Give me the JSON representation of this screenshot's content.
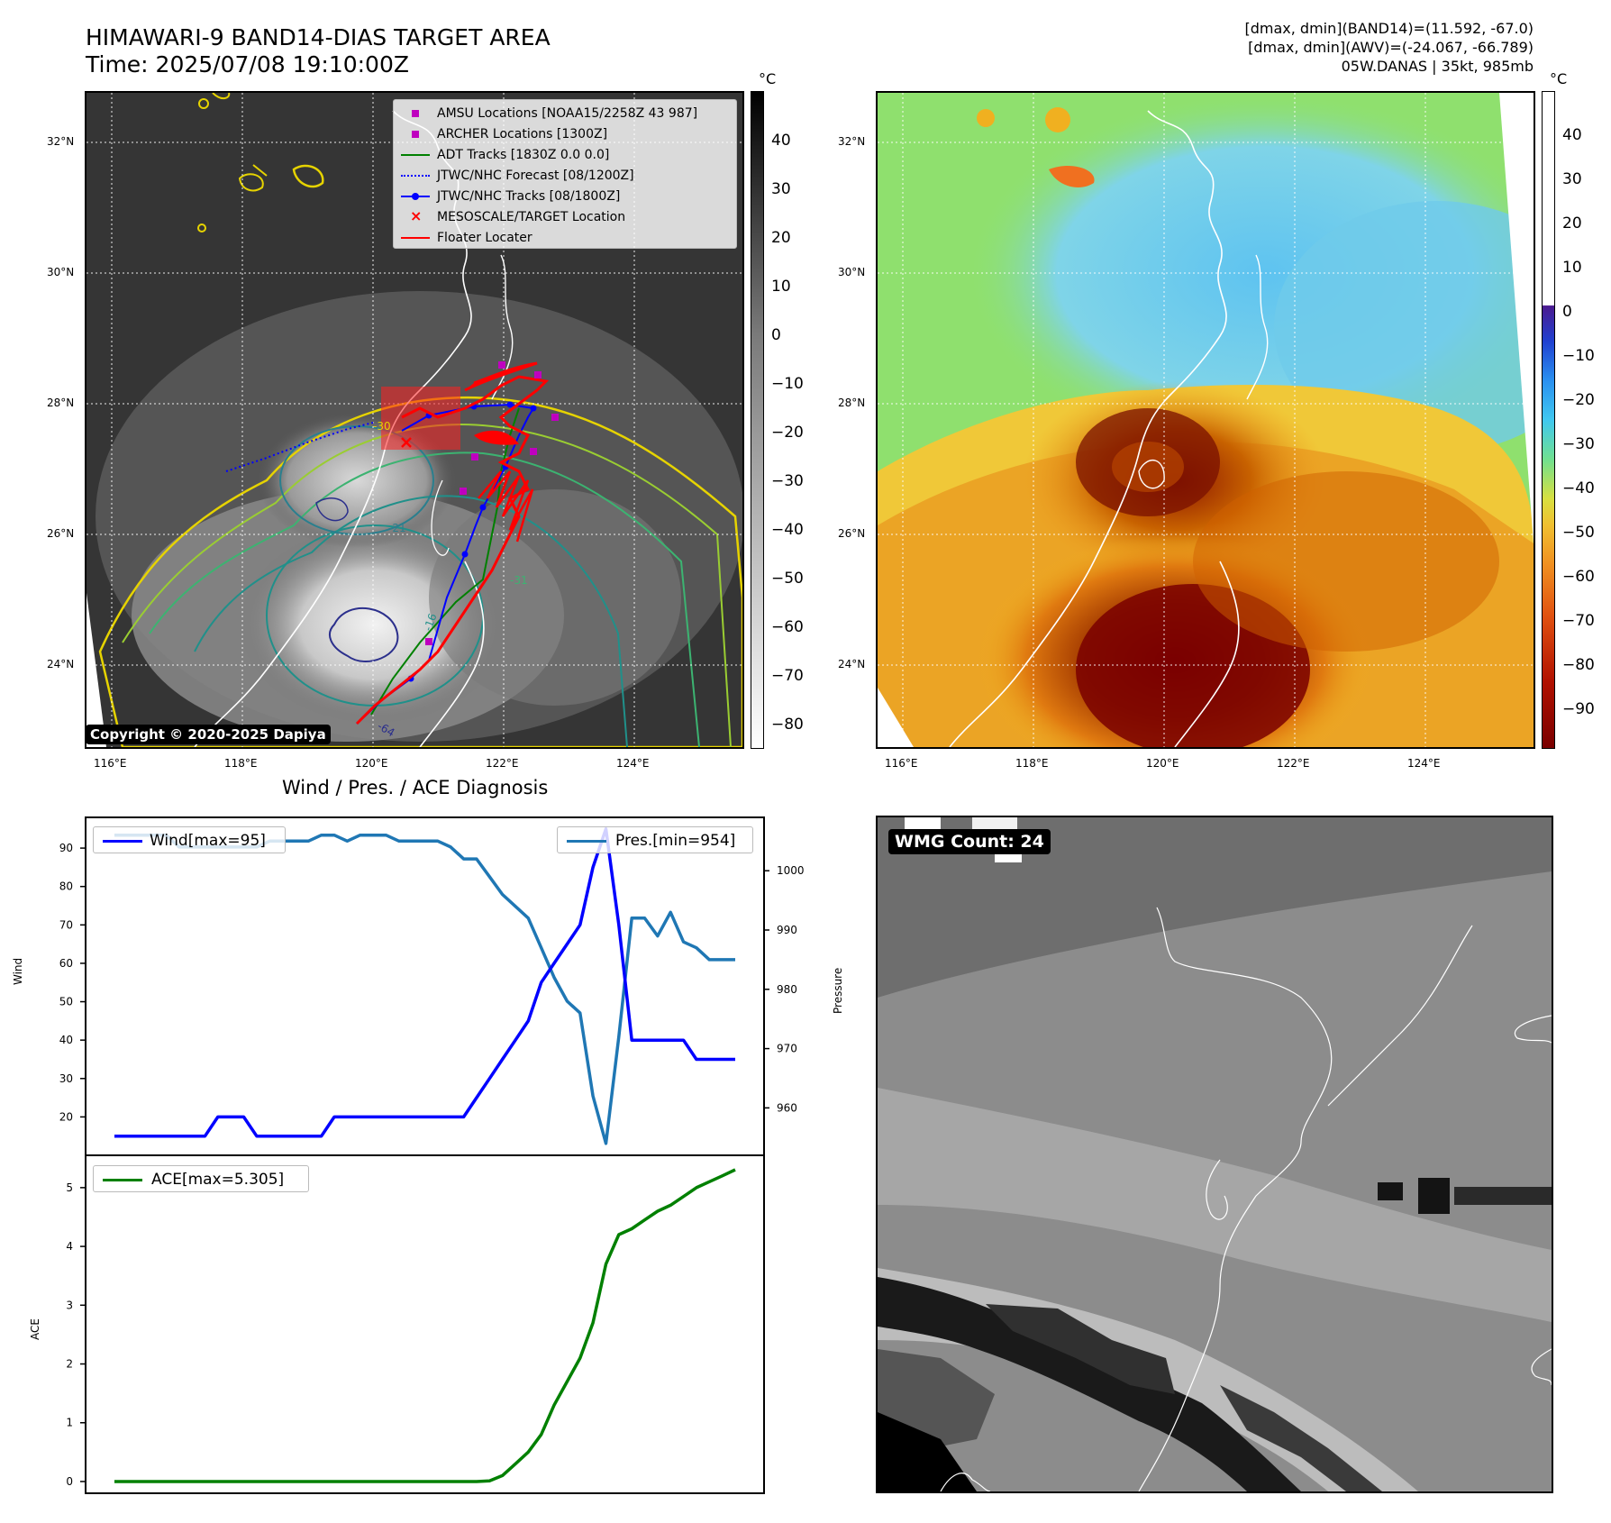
{
  "header": {
    "title_line1": "HIMAWARI-9 BAND14-DIAS TARGET AREA",
    "title_line2": "Time: 2025/07/08 19:10:00Z",
    "info_line1": "[dmax, dmin](BAND14)=(11.592, -67.0)",
    "info_line2": "[dmax, dmin](AWV)=(-24.067, -66.789)",
    "info_line3": "05W.DANAS | 35kt, 985mb"
  },
  "map": {
    "lat_labels": [
      "32°N",
      "30°N",
      "28°N",
      "26°N",
      "24°N"
    ],
    "lon_labels": [
      "116°E",
      "118°E",
      "120°E",
      "122°E",
      "124°E"
    ],
    "copyright": "Copyright © 2020-2025 Dapiya",
    "contour_labels": [
      "-30",
      "-16",
      "-64",
      "-31",
      "-21"
    ]
  },
  "colorbar_left": {
    "unit": "°C",
    "ticks": [
      "40",
      "30",
      "20",
      "10",
      "0",
      "−10",
      "−20",
      "−30",
      "−40",
      "−50",
      "−60",
      "−70",
      "−80"
    ]
  },
  "colorbar_right": {
    "unit": "°C",
    "ticks": [
      "40",
      "30",
      "20",
      "10",
      "0",
      "−10",
      "−20",
      "−30",
      "−40",
      "−50",
      "−60",
      "−70",
      "−80",
      "−90"
    ]
  },
  "legend": {
    "items": [
      {
        "label": "AMSU Locations [NOAA15/2258Z 43 987]",
        "symbol": "square",
        "color": "#bf00bf"
      },
      {
        "label": "ARCHER Locations [1300Z]",
        "symbol": "square",
        "color": "#bf00bf"
      },
      {
        "label": "ADT Tracks [1830Z 0.0 0.0]",
        "symbol": "line",
        "color": "#008000"
      },
      {
        "label": "JTWC/NHC Forecast [08/1200Z]",
        "symbol": "dotted",
        "color": "#0000ff"
      },
      {
        "label": "JTWC/NHC Tracks [08/1800Z]",
        "symbol": "line-dot",
        "color": "#0000ff"
      },
      {
        "label": "MESOSCALE/TARGET Location",
        "symbol": "x",
        "color": "#ff0000"
      },
      {
        "label": "Floater Locater",
        "symbol": "line",
        "color": "#ff0000"
      }
    ]
  },
  "wmg": {
    "badge": "WMG Count: 24"
  },
  "chart_data": [
    {
      "type": "line",
      "title": "Wind / Pres. / ACE Diagnosis",
      "ylabel": "Wind",
      "ylabel2": "Pressure",
      "ylim": [
        10,
        98
      ],
      "ylim2": [
        952,
        1009
      ],
      "yticks": [
        20,
        30,
        40,
        50,
        60,
        70,
        80,
        90
      ],
      "yticks2": [
        960,
        970,
        980,
        990,
        1000
      ],
      "x": [
        0,
        1,
        2,
        3,
        4,
        5,
        6,
        7,
        8,
        9,
        10,
        11,
        12,
        13,
        14,
        15,
        16,
        17,
        18,
        19,
        20,
        21,
        22,
        23,
        24,
        25,
        26,
        27,
        28,
        29,
        30,
        31,
        32,
        33,
        34,
        35,
        36,
        37,
        38,
        39,
        40,
        41,
        42,
        43,
        44,
        45,
        46,
        47,
        48
      ],
      "series": [
        {
          "name": "Wind[max=95]",
          "color": "#0000ff",
          "axis": "left",
          "values": [
            15,
            15,
            15,
            15,
            15,
            15,
            15,
            15,
            20,
            20,
            20,
            15,
            15,
            15,
            15,
            15,
            15,
            20,
            20,
            20,
            20,
            20,
            20,
            20,
            20,
            20,
            20,
            20,
            25,
            30,
            35,
            40,
            45,
            55,
            60,
            65,
            70,
            85,
            95,
            70,
            40,
            40,
            40,
            40,
            40,
            35,
            35,
            35,
            35
          ]
        },
        {
          "name": "Pres.[min=954]",
          "color": "#1f77b4",
          "axis": "right",
          "values": [
            1006,
            1006,
            1006,
            1006,
            1006,
            1004,
            1004,
            1004,
            1004,
            1004,
            1004,
            1004,
            1005,
            1005,
            1005,
            1005,
            1006,
            1006,
            1005,
            1006,
            1006,
            1006,
            1005,
            1005,
            1005,
            1005,
            1004,
            1002,
            1002,
            999,
            996,
            994,
            992,
            987,
            982,
            978,
            976,
            962,
            954,
            972,
            992,
            992,
            989,
            993,
            988,
            987,
            985,
            985,
            985
          ]
        }
      ]
    },
    {
      "type": "line",
      "ylabel": "ACE",
      "ylim": [
        -0.2,
        5.55
      ],
      "yticks": [
        0,
        1,
        2,
        3,
        4,
        5
      ],
      "x": [
        0,
        1,
        2,
        3,
        4,
        5,
        6,
        7,
        8,
        9,
        10,
        11,
        12,
        13,
        14,
        15,
        16,
        17,
        18,
        19,
        20,
        21,
        22,
        23,
        24,
        25,
        26,
        27,
        28,
        29,
        30,
        31,
        32,
        33,
        34,
        35,
        36,
        37,
        38,
        39,
        40,
        41,
        42,
        43,
        44,
        45,
        46,
        47,
        48
      ],
      "series": [
        {
          "name": "ACE[max=5.305]",
          "color": "#008000",
          "values": [
            0,
            0,
            0,
            0,
            0,
            0,
            0,
            0,
            0,
            0,
            0,
            0,
            0,
            0,
            0,
            0,
            0,
            0,
            0,
            0,
            0,
            0,
            0,
            0,
            0,
            0,
            0,
            0,
            0,
            0.01,
            0.1,
            0.3,
            0.5,
            0.8,
            1.3,
            1.7,
            2.1,
            2.7,
            3.7,
            4.2,
            4.3,
            4.45,
            4.6,
            4.7,
            4.85,
            5.0,
            5.1,
            5.2,
            5.305
          ]
        }
      ]
    }
  ]
}
